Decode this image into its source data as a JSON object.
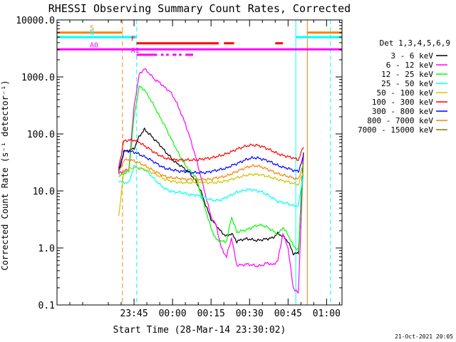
{
  "chart_data": {
    "type": "line",
    "title": "RHESSI Observing Summary Count Rates, Corrected",
    "xlabel": "Start Time (28-Mar-14 23:30:02)",
    "ylabel": "Corrected Count Rate (s⁻¹ detector⁻¹)",
    "y_scale": "log",
    "ylim": [
      0.1,
      10000
    ],
    "xlim_minutes": [
      -15,
      96
    ],
    "y_ticks": [
      "0.1",
      "1.0",
      "10.0",
      "100.0",
      "1000.0",
      "10000.0"
    ],
    "x_ticks": [
      {
        "label": "23:45",
        "t": 15
      },
      {
        "label": "00:00",
        "t": 30
      },
      {
        "label": "00:15",
        "t": 45
      },
      {
        "label": "00:30",
        "t": 60
      },
      {
        "label": "00:45",
        "t": 75
      },
      {
        "label": "01:00",
        "t": 90
      }
    ],
    "legend": {
      "header": "Det 1,3,4,5,6,9",
      "placement": "right"
    },
    "series": [
      {
        "name": "3 - 6 keV",
        "color": "#000000",
        "x": [
          9,
          11,
          13,
          15,
          17,
          19,
          21,
          23,
          25,
          27,
          29,
          31,
          33,
          35,
          37,
          39,
          41,
          43,
          45,
          47,
          49,
          51,
          53,
          55,
          57,
          59,
          61,
          63,
          65,
          67,
          69,
          71,
          73,
          75,
          77,
          79,
          81
        ],
        "y": [
          20,
          48,
          52,
          55,
          90,
          120,
          100,
          80,
          65,
          50,
          40,
          32,
          28,
          24,
          20,
          15,
          10,
          5.5,
          3.2,
          2.5,
          1.9,
          1.6,
          1.8,
          1.3,
          1.4,
          1.45,
          1.4,
          1.35,
          1.4,
          1.45,
          1.5,
          1.8,
          1.6,
          1.3,
          0.8,
          0.8,
          45
        ]
      },
      {
        "name": "6 - 12 keV",
        "color": "#ff00ff",
        "x": [
          9,
          11,
          13,
          15,
          17,
          19,
          21,
          23,
          25,
          27,
          29,
          31,
          33,
          35,
          37,
          39,
          41,
          43,
          45,
          47,
          49,
          51,
          53,
          55,
          57,
          59,
          61,
          63,
          65,
          67,
          69,
          71,
          73,
          75,
          77,
          79,
          81
        ],
        "y": [
          20,
          22,
          24,
          300,
          1100,
          1400,
          1150,
          900,
          800,
          650,
          560,
          400,
          250,
          150,
          80,
          40,
          18,
          8,
          3.5,
          2.5,
          1.0,
          0.7,
          1.5,
          0.5,
          0.5,
          0.52,
          0.5,
          0.48,
          0.5,
          0.55,
          0.5,
          0.6,
          1.8,
          1.0,
          0.2,
          0.16,
          40
        ]
      },
      {
        "name": "12 - 25 keV",
        "color": "#00ff00",
        "x": [
          9,
          11,
          13,
          15,
          17,
          19,
          21,
          23,
          25,
          27,
          29,
          31,
          33,
          35,
          37,
          39,
          41,
          43,
          45,
          47,
          49,
          51,
          53,
          55,
          57,
          59,
          61,
          63,
          65,
          67,
          69,
          71,
          73,
          75,
          77,
          79,
          81
        ],
        "y": [
          18,
          20,
          22,
          200,
          680,
          600,
          430,
          300,
          200,
          140,
          90,
          60,
          40,
          28,
          22,
          18,
          9,
          4.5,
          2.2,
          1.4,
          1.3,
          1.3,
          3.5,
          1.9,
          2.0,
          2.1,
          2.3,
          2.5,
          2.5,
          2.3,
          2.0,
          1.7,
          2.3,
          1.7,
          1.1,
          0.9,
          30
        ]
      },
      {
        "name": "25 - 50 keV",
        "color": "#00ffff",
        "x": [
          9,
          11,
          13,
          15,
          17,
          19,
          21,
          23,
          25,
          27,
          29,
          31,
          33,
          35,
          37,
          39,
          41,
          43,
          45,
          47,
          49,
          51,
          53,
          55,
          57,
          59,
          61,
          63,
          65,
          67,
          69,
          71,
          73,
          75,
          77,
          79,
          81
        ],
        "y": [
          15,
          14,
          14,
          27,
          25,
          24,
          20,
          16,
          13,
          11,
          10,
          9.5,
          9.5,
          9,
          8.5,
          8.5,
          8,
          7.5,
          7,
          6.8,
          7,
          7.8,
          8.5,
          9.5,
          10,
          10.5,
          10.5,
          10,
          9.5,
          8.5,
          7.5,
          6.5,
          6.3,
          6,
          5.5,
          5.5,
          20
        ]
      },
      {
        "name": "50 - 100 keV",
        "color": "#c8c800",
        "x": [
          9,
          11,
          13,
          15,
          17,
          19,
          21,
          23,
          25,
          27,
          29,
          31,
          33,
          35,
          37,
          39,
          41,
          43,
          45,
          47,
          49,
          51,
          53,
          55,
          57,
          59,
          61,
          63,
          65,
          67,
          69,
          71,
          73,
          75,
          77,
          79,
          81
        ],
        "y": [
          3.5,
          22,
          24,
          26,
          25,
          24,
          22,
          20,
          18,
          16,
          15,
          14.5,
          14,
          14,
          14,
          14,
          14,
          14,
          14,
          14,
          14.5,
          15,
          16,
          17,
          18,
          19,
          19.5,
          19.5,
          19,
          18,
          17,
          16,
          15,
          14.5,
          13.5,
          13,
          22
        ]
      },
      {
        "name": "100 - 300 keV",
        "color": "#ff0000",
        "x": [
          9,
          11,
          13,
          15,
          17,
          19,
          21,
          23,
          25,
          27,
          29,
          31,
          33,
          35,
          37,
          39,
          41,
          43,
          45,
          47,
          49,
          51,
          53,
          55,
          57,
          59,
          61,
          63,
          65,
          67,
          69,
          71,
          73,
          75,
          77,
          79,
          81
        ],
        "y": [
          25,
          75,
          78,
          78,
          72,
          62,
          55,
          47,
          42,
          38,
          36,
          35,
          35,
          35,
          35,
          35,
          36,
          37,
          38,
          40,
          42,
          45,
          49,
          54,
          58,
          62,
          64,
          63,
          60,
          55,
          50,
          45,
          42,
          40,
          38,
          35,
          60
        ]
      },
      {
        "name": "300 - 800 keV",
        "color": "#0000ff",
        "x": [
          9,
          11,
          13,
          15,
          17,
          19,
          21,
          23,
          25,
          27,
          29,
          31,
          33,
          35,
          37,
          39,
          41,
          43,
          45,
          47,
          49,
          51,
          53,
          55,
          57,
          59,
          61,
          63,
          65,
          67,
          69,
          71,
          73,
          75,
          77,
          79,
          81
        ],
        "y": [
          22,
          50,
          50,
          48,
          44,
          40,
          36,
          32,
          28,
          25,
          24,
          23,
          22,
          22,
          21,
          21,
          21,
          21,
          22,
          23,
          24,
          25,
          28,
          30,
          33,
          36,
          38,
          38,
          36,
          34,
          31,
          28,
          26,
          25,
          23,
          22,
          40
        ]
      },
      {
        "name": "800 - 7000 keV",
        "color": "#ff8000",
        "x": [
          9,
          11,
          13,
          15,
          17,
          19,
          21,
          23,
          25,
          27,
          29,
          31,
          33,
          35,
          37,
          39,
          41,
          43,
          45,
          47,
          49,
          51,
          53,
          55,
          57,
          59,
          61,
          63,
          65,
          67,
          69,
          71,
          73,
          75,
          77,
          79,
          81
        ],
        "y": [
          20,
          35,
          35,
          34,
          31,
          28,
          25,
          22,
          20,
          18,
          17,
          17,
          16.5,
          16,
          16,
          16,
          16,
          16,
          16,
          17,
          17.5,
          18.5,
          20,
          22,
          24,
          26,
          27.5,
          27.5,
          26,
          24,
          22,
          20,
          19,
          18,
          17,
          16,
          30
        ]
      },
      {
        "name": "7000 - 15000 keV",
        "color": "#808000",
        "x": [],
        "y": []
      }
    ],
    "vertical_markers": [
      {
        "t": -15,
        "color": "#00ffff",
        "style": "solid"
      },
      {
        "t": 10.5,
        "color": "#ff8000",
        "style": "dashed"
      },
      {
        "t": 16,
        "color": "#00ffff",
        "style": "dashed"
      },
      {
        "t": 78,
        "color": "#00ffff",
        "style": "solid"
      },
      {
        "t": 82.5,
        "color": "#ff8000",
        "style": "solid"
      },
      {
        "t": 91.5,
        "color": "#00ffff",
        "style": "dashed"
      }
    ],
    "state_bars": [
      {
        "label": "S",
        "color": "#ff8000",
        "y": 6000,
        "segments": [
          [
            -15,
            10.5
          ],
          [
            82.5,
            96
          ]
        ]
      },
      {
        "label": "N",
        "color": "#00ffff",
        "y": 5000,
        "segments": [
          [
            -15,
            16
          ],
          [
            78,
            96
          ]
        ]
      },
      {
        "label": "F",
        "color": "#ff0000",
        "y": 3900,
        "segments": [
          [
            16,
            48
          ],
          [
            50,
            54
          ],
          [
            70,
            73
          ]
        ]
      },
      {
        "label": "A0",
        "color": "#ff00ff",
        "y": 3050,
        "segments": [
          [
            -15,
            96
          ]
        ]
      },
      {
        "label": "A1",
        "color": "#ff00ff",
        "y": 2450,
        "segments": [
          [
            16,
            24
          ],
          [
            25.5,
            26.5
          ],
          [
            27.5,
            28.5
          ],
          [
            30,
            31.5
          ],
          [
            32.5,
            33.5
          ],
          [
            35,
            38
          ]
        ]
      }
    ],
    "footer_timestamp": "21-Oct-2021 20:05"
  }
}
